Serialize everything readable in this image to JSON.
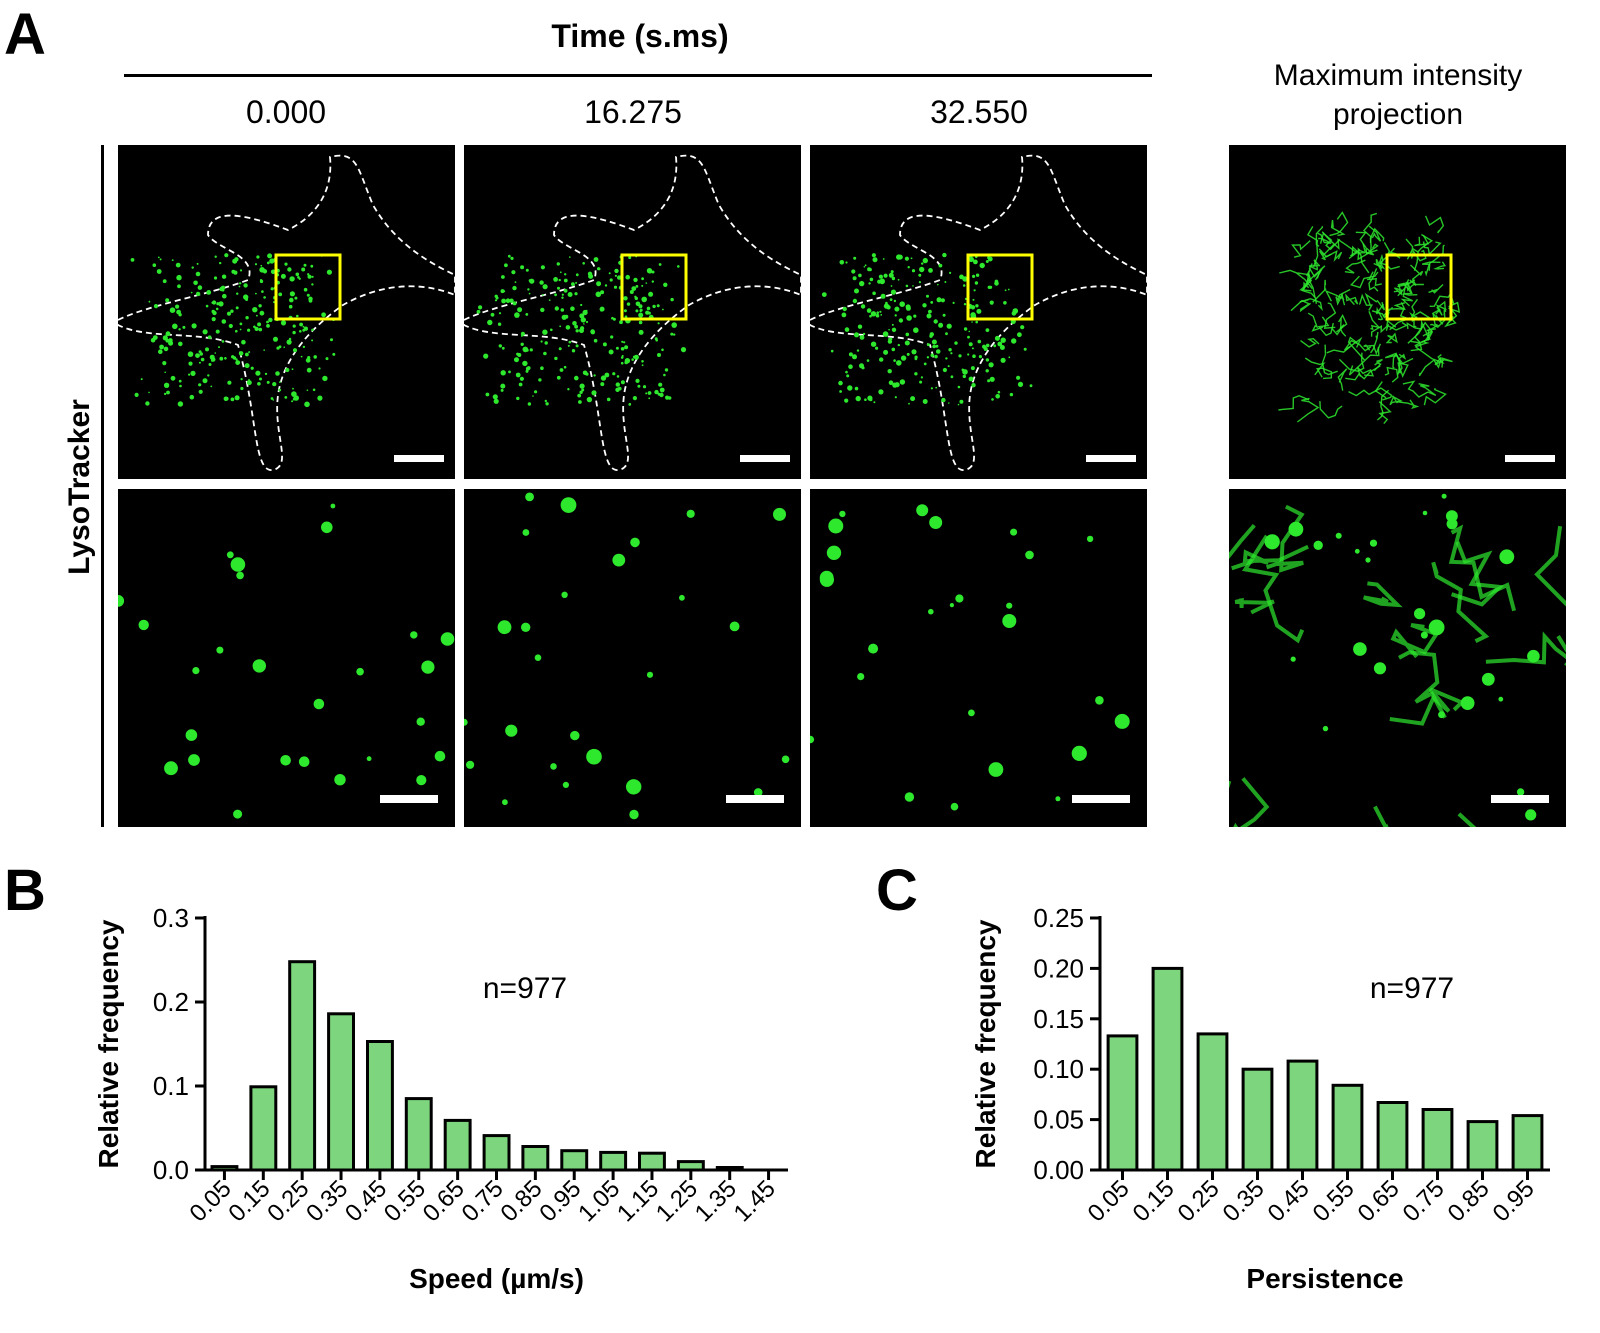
{
  "panel_a": {
    "letter": "A",
    "time_title": "Time (s.ms)",
    "time_points": [
      "0.000",
      "16.275",
      "32.550"
    ],
    "projection_title_line1": "Maximum intensity",
    "projection_title_line2": "projection",
    "row_label": "LysoTracker",
    "colors": {
      "signal": "#2ee82e",
      "roi": "#ffff00",
      "outline": "#ffffff",
      "background": "#000000"
    }
  },
  "panel_b": {
    "letter": "B",
    "annotation": "n=977"
  },
  "panel_c": {
    "letter": "C",
    "annotation": "n=977"
  },
  "chart_data": [
    {
      "type": "bar",
      "panel": "B",
      "title": "",
      "xlabel": "Speed (µm/s)",
      "ylabel": "Relative frequency",
      "categories": [
        "0.05",
        "0.15",
        "0.25",
        "0.35",
        "0.45",
        "0.55",
        "0.65",
        "0.75",
        "0.85",
        "0.95",
        "1.05",
        "1.15",
        "1.25",
        "1.35",
        "1.45"
      ],
      "values": [
        0.004,
        0.099,
        0.248,
        0.186,
        0.153,
        0.085,
        0.059,
        0.041,
        0.028,
        0.023,
        0.021,
        0.02,
        0.01,
        0.003,
        0.0
      ],
      "ylim": [
        0,
        0.3
      ],
      "yticks": [
        "0.0",
        "0.1",
        "0.2",
        "0.3"
      ],
      "bar_color": "#7dd67d",
      "grid": false
    },
    {
      "type": "bar",
      "panel": "C",
      "title": "",
      "xlabel": "Persistence",
      "ylabel": "Relative frequency",
      "categories": [
        "0.05",
        "0.15",
        "0.25",
        "0.35",
        "0.45",
        "0.55",
        "0.65",
        "0.75",
        "0.85",
        "0.95"
      ],
      "values": [
        0.133,
        0.2,
        0.135,
        0.1,
        0.108,
        0.084,
        0.067,
        0.06,
        0.048,
        0.054
      ],
      "ylim": [
        0,
        0.25
      ],
      "yticks": [
        "0.00",
        "0.05",
        "0.10",
        "0.15",
        "0.20",
        "0.25"
      ],
      "bar_color": "#7dd67d",
      "grid": false
    }
  ]
}
